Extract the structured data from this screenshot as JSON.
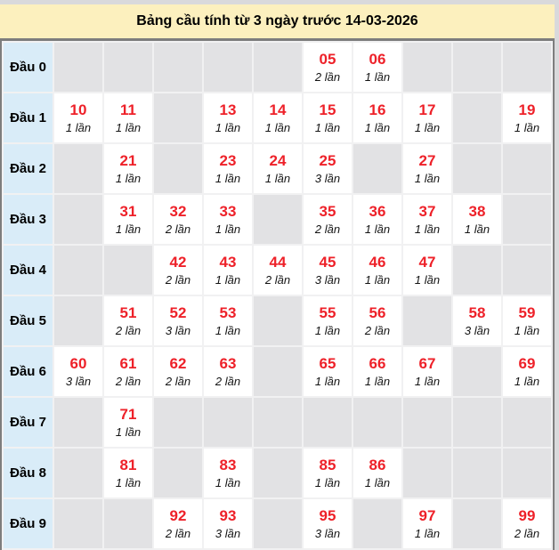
{
  "title": "Bảng cầu tính từ 3 ngày trước 14-03-2026",
  "colors": {
    "title_background": "#fcf0be",
    "table_border": "#7d7d7d",
    "row_label_background": "#d9ecf8",
    "empty_cell_background": "#e2e2e4",
    "filled_cell_background": "#ffffff",
    "number_red": "#ee2129",
    "page_margin_gray": "#d9d9db"
  },
  "table": {
    "rows": [
      {
        "label": "Đầu 0",
        "cells": [
          null,
          null,
          null,
          null,
          null,
          {
            "number": "05",
            "count": "2 lần"
          },
          {
            "number": "06",
            "count": "1 lần"
          },
          null,
          null,
          null
        ]
      },
      {
        "label": "Đầu 1",
        "cells": [
          {
            "number": "10",
            "count": "1 lần"
          },
          {
            "number": "11",
            "count": "1 lần"
          },
          null,
          {
            "number": "13",
            "count": "1 lần"
          },
          {
            "number": "14",
            "count": "1 lần"
          },
          {
            "number": "15",
            "count": "1 lần"
          },
          {
            "number": "16",
            "count": "1 lần"
          },
          {
            "number": "17",
            "count": "1 lần"
          },
          null,
          {
            "number": "19",
            "count": "1 lần"
          }
        ]
      },
      {
        "label": "Đầu 2",
        "cells": [
          null,
          {
            "number": "21",
            "count": "1 lần"
          },
          null,
          {
            "number": "23",
            "count": "1 lần"
          },
          {
            "number": "24",
            "count": "1 lần"
          },
          {
            "number": "25",
            "count": "3 lần"
          },
          null,
          {
            "number": "27",
            "count": "1 lần"
          },
          null,
          null
        ]
      },
      {
        "label": "Đầu 3",
        "cells": [
          null,
          {
            "number": "31",
            "count": "1 lần"
          },
          {
            "number": "32",
            "count": "2 lần"
          },
          {
            "number": "33",
            "count": "1 lần"
          },
          null,
          {
            "number": "35",
            "count": "2 lần"
          },
          {
            "number": "36",
            "count": "1 lần"
          },
          {
            "number": "37",
            "count": "1 lần"
          },
          {
            "number": "38",
            "count": "1 lần"
          },
          null
        ]
      },
      {
        "label": "Đầu 4",
        "cells": [
          null,
          null,
          {
            "number": "42",
            "count": "2 lần"
          },
          {
            "number": "43",
            "count": "1 lần"
          },
          {
            "number": "44",
            "count": "2 lần"
          },
          {
            "number": "45",
            "count": "3 lần"
          },
          {
            "number": "46",
            "count": "1 lần"
          },
          {
            "number": "47",
            "count": "1 lần"
          },
          null,
          null
        ]
      },
      {
        "label": "Đầu 5",
        "cells": [
          null,
          {
            "number": "51",
            "count": "2 lần"
          },
          {
            "number": "52",
            "count": "3 lần"
          },
          {
            "number": "53",
            "count": "1 lần"
          },
          null,
          {
            "number": "55",
            "count": "1 lần"
          },
          {
            "number": "56",
            "count": "2 lần"
          },
          null,
          {
            "number": "58",
            "count": "3 lần"
          },
          {
            "number": "59",
            "count": "1 lần"
          }
        ]
      },
      {
        "label": "Đầu 6",
        "cells": [
          {
            "number": "60",
            "count": "3 lần"
          },
          {
            "number": "61",
            "count": "2 lần"
          },
          {
            "number": "62",
            "count": "2 lần"
          },
          {
            "number": "63",
            "count": "2 lần"
          },
          null,
          {
            "number": "65",
            "count": "1 lần"
          },
          {
            "number": "66",
            "count": "1 lần"
          },
          {
            "number": "67",
            "count": "1 lần"
          },
          null,
          {
            "number": "69",
            "count": "1 lần"
          }
        ]
      },
      {
        "label": "Đầu 7",
        "cells": [
          null,
          {
            "number": "71",
            "count": "1 lần"
          },
          null,
          null,
          null,
          null,
          null,
          null,
          null,
          null
        ]
      },
      {
        "label": "Đầu 8",
        "cells": [
          null,
          {
            "number": "81",
            "count": "1 lần"
          },
          null,
          {
            "number": "83",
            "count": "1 lần"
          },
          null,
          {
            "number": "85",
            "count": "1 lần"
          },
          {
            "number": "86",
            "count": "1 lần"
          },
          null,
          null,
          null
        ]
      },
      {
        "label": "Đầu 9",
        "cells": [
          null,
          null,
          {
            "number": "92",
            "count": "2 lần"
          },
          {
            "number": "93",
            "count": "3 lần"
          },
          null,
          {
            "number": "95",
            "count": "3 lần"
          },
          null,
          {
            "number": "97",
            "count": "1 lần"
          },
          null,
          {
            "number": "99",
            "count": "2 lần"
          }
        ]
      }
    ]
  }
}
